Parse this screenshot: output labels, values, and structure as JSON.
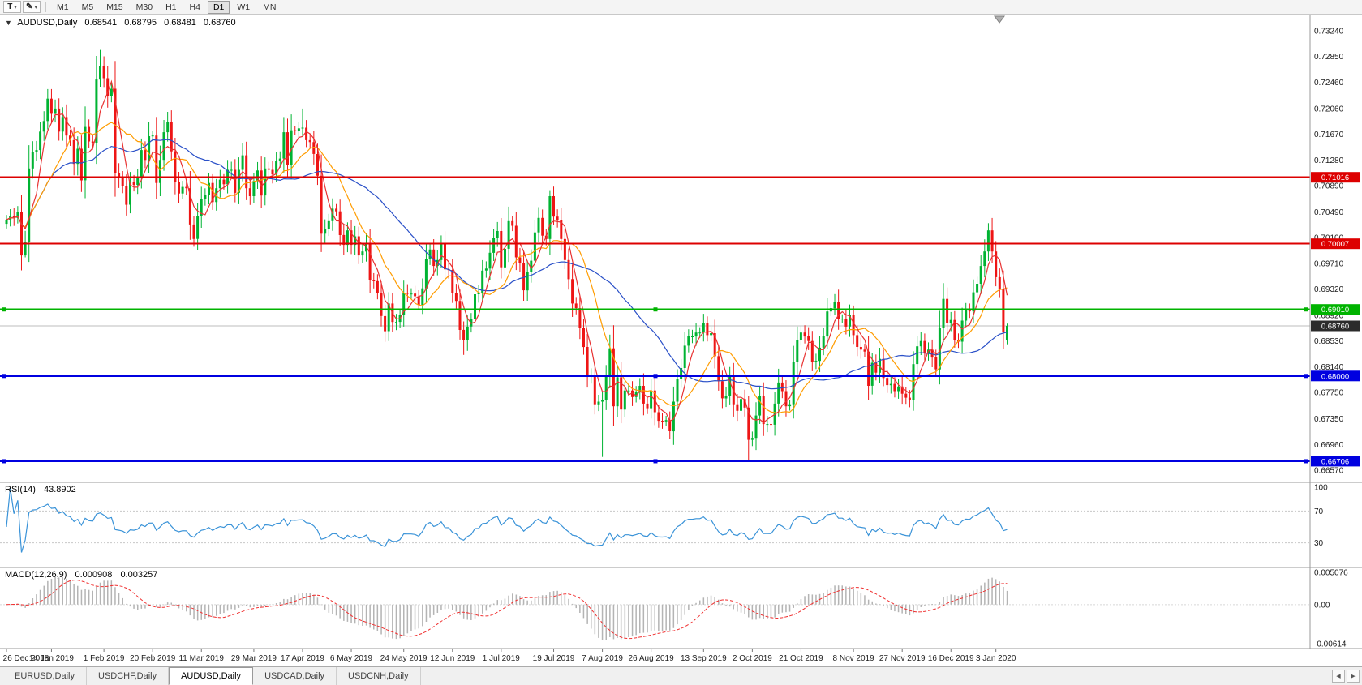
{
  "toolbar": {
    "text_tool_glyph": "T",
    "draw_tool_glyph": "✎",
    "dropdown_glyph": "▾",
    "timeframes": [
      "M1",
      "M5",
      "M15",
      "M30",
      "H1",
      "H4",
      "D1",
      "W1",
      "MN"
    ],
    "active_timeframe": "D1"
  },
  "chart_header": {
    "collapse_glyph": "▼",
    "symbol": "AUDUSD,Daily",
    "open": "0.68541",
    "high": "0.68795",
    "low": "0.68481",
    "close": "0.68760"
  },
  "colors": {
    "up": "#00b332",
    "down": "#ee1515",
    "ma_fast": "#e83232",
    "ma_mid": "#ff9c00",
    "ma_slow": "#2a50c8",
    "rsi": "#3a93d8",
    "macd_hist": "#b4b4b4",
    "macd_signal": "#f03030",
    "axis_text": "#1a1a1a"
  },
  "price_axis": {
    "ticks": [
      0.7324,
      0.7285,
      0.7246,
      0.7206,
      0.7167,
      0.7128,
      0.7089,
      0.7049,
      0.701,
      0.6971,
      0.6932,
      0.6892,
      0.6853,
      0.6814,
      0.6775,
      0.6735,
      0.6696,
      0.6657
    ]
  },
  "date_axis": {
    "ticks": [
      {
        "i": 0,
        "label": "26 Dec 2018"
      },
      {
        "i": 12,
        "label": "14 Jan 2019"
      },
      {
        "i": 26,
        "label": "1 Feb 2019"
      },
      {
        "i": 39,
        "label": "20 Feb 2019"
      },
      {
        "i": 52,
        "label": "11 Mar 2019"
      },
      {
        "i": 66,
        "label": "29 Mar 2019"
      },
      {
        "i": 79,
        "label": "17 Apr 2019"
      },
      {
        "i": 92,
        "label": "6 May 2019"
      },
      {
        "i": 106,
        "label": "24 May 2019"
      },
      {
        "i": 119,
        "label": "12 Jun 2019"
      },
      {
        "i": 132,
        "label": "1 Jul 2019"
      },
      {
        "i": 146,
        "label": "19 Jul 2019"
      },
      {
        "i": 159,
        "label": "7 Aug 2019"
      },
      {
        "i": 172,
        "label": "26 Aug 2019"
      },
      {
        "i": 186,
        "label": "13 Sep 2019"
      },
      {
        "i": 199,
        "label": "2 Oct 2019"
      },
      {
        "i": 212,
        "label": "21 Oct 2019"
      },
      {
        "i": 226,
        "label": "8 Nov 2019"
      },
      {
        "i": 239,
        "label": "27 Nov 2019"
      },
      {
        "i": 252,
        "label": "16 Dec 2019"
      },
      {
        "i": 264,
        "label": "3 Jan 2020"
      }
    ]
  },
  "chart_data": {
    "type": "candlestick",
    "symbol": "AUDUSD",
    "timeframe": "Daily",
    "ohlc_current": {
      "open": 0.68541,
      "high": 0.68795,
      "low": 0.68481,
      "close": 0.6876
    },
    "first_open": 0.7031,
    "closes": [
      0.7037,
      0.7043,
      0.704,
      0.7049,
      0.6983,
      0.7003,
      0.7115,
      0.714,
      0.7143,
      0.7171,
      0.7187,
      0.7221,
      0.7198,
      0.7206,
      0.7171,
      0.7193,
      0.7165,
      0.7158,
      0.7122,
      0.7145,
      0.7097,
      0.7178,
      0.7156,
      0.7153,
      0.725,
      0.7271,
      0.7252,
      0.7225,
      0.7236,
      0.7108,
      0.71,
      0.7088,
      0.706,
      0.7095,
      0.709,
      0.71,
      0.7143,
      0.7128,
      0.7164,
      0.7165,
      0.7093,
      0.7128,
      0.717,
      0.7186,
      0.7141,
      0.7094,
      0.7077,
      0.7087,
      0.7085,
      0.703,
      0.7008,
      0.7043,
      0.7068,
      0.7075,
      0.7093,
      0.7064,
      0.7085,
      0.7098,
      0.7091,
      0.7113,
      0.7113,
      0.7078,
      0.7113,
      0.7135,
      0.7085,
      0.7073,
      0.7096,
      0.7112,
      0.7074,
      0.7115,
      0.7113,
      0.7106,
      0.7127,
      0.713,
      0.717,
      0.712,
      0.7173,
      0.7172,
      0.7176,
      0.7177,
      0.7158,
      0.7155,
      0.7137,
      0.7104,
      0.7016,
      0.7023,
      0.7035,
      0.7054,
      0.705,
      0.7014,
      0.6999,
      0.7021,
      0.6999,
      0.7012,
      0.6983,
      0.6989,
      0.7001,
      0.6945,
      0.6944,
      0.6926,
      0.6891,
      0.6868,
      0.691,
      0.6882,
      0.6882,
      0.6892,
      0.6926,
      0.6925,
      0.6925,
      0.6921,
      0.6908,
      0.6933,
      0.6978,
      0.6992,
      0.6967,
      0.6976,
      0.7,
      0.6962,
      0.6961,
      0.6926,
      0.6914,
      0.687,
      0.6854,
      0.6875,
      0.6886,
      0.6924,
      0.6926,
      0.696,
      0.6963,
      0.6987,
      0.7009,
      0.702,
      0.6965,
      0.6993,
      0.7035,
      0.7028,
      0.698,
      0.6972,
      0.693,
      0.6958,
      0.6975,
      0.7018,
      0.704,
      0.7013,
      0.7008,
      0.7073,
      0.7042,
      0.7036,
      0.7008,
      0.6976,
      0.6947,
      0.691,
      0.6903,
      0.6873,
      0.6844,
      0.68,
      0.68,
      0.6757,
      0.6761,
      0.6763,
      0.68,
      0.6842,
      0.6754,
      0.6798,
      0.6749,
      0.6778,
      0.6778,
      0.6768,
      0.6776,
      0.6785,
      0.6758,
      0.6751,
      0.6778,
      0.6745,
      0.6732,
      0.6731,
      0.6733,
      0.6716,
      0.6761,
      0.6795,
      0.6812,
      0.6846,
      0.686,
      0.686,
      0.6866,
      0.6866,
      0.688,
      0.6862,
      0.6865,
      0.683,
      0.6792,
      0.6766,
      0.677,
      0.6799,
      0.6757,
      0.6747,
      0.6765,
      0.6752,
      0.6703,
      0.6706,
      0.674,
      0.677,
      0.6727,
      0.6727,
      0.6726,
      0.6758,
      0.679,
      0.6777,
      0.6754,
      0.6757,
      0.6821,
      0.6855,
      0.6866,
      0.686,
      0.6853,
      0.6821,
      0.6823,
      0.6843,
      0.686,
      0.6898,
      0.6903,
      0.6913,
      0.6887,
      0.6887,
      0.6875,
      0.6892,
      0.6862,
      0.6844,
      0.684,
      0.6837,
      0.6785,
      0.682,
      0.6805,
      0.6826,
      0.6797,
      0.6786,
      0.6788,
      0.6777,
      0.6784,
      0.6773,
      0.6767,
      0.6764,
      0.6818,
      0.6845,
      0.6853,
      0.6834,
      0.684,
      0.6828,
      0.681,
      0.6873,
      0.6917,
      0.688,
      0.6885,
      0.6855,
      0.6852,
      0.6884,
      0.69,
      0.6898,
      0.6927,
      0.694,
      0.6967,
      0.6989,
      0.7021,
      0.6989,
      0.695,
      0.6932,
      0.6866,
      0.6876
    ],
    "wick_overrides": {
      "5": {
        "low": 0.698
      },
      "25": {
        "high": 0.7295
      },
      "79": {
        "high": 0.7206
      },
      "122": {
        "low": 0.6832
      },
      "145": {
        "high": 0.7082
      },
      "159": {
        "low": 0.6677
      },
      "198": {
        "low": 0.6671
      },
      "262": {
        "high": 0.7032
      },
      "267": {
        "open": 0.68541,
        "high": 0.68795,
        "low": 0.68481
      }
    },
    "moving_averages": [
      {
        "period": 5,
        "color": "#e83232"
      },
      {
        "period": 13,
        "color": "#ff9c00"
      },
      {
        "period": 34,
        "color": "#2a50c8"
      }
    ],
    "hlines": [
      {
        "price": 0.71016,
        "color": "#dd0000",
        "label": "0.71016",
        "selected": false
      },
      {
        "price": 0.70007,
        "color": "#dd0000",
        "label": "0.70007",
        "selected": false
      },
      {
        "price": 0.6901,
        "color": "#00b300",
        "label": "0.69010",
        "selected": true
      },
      {
        "price": 0.68,
        "color": "#0000e0",
        "label": "0.68000",
        "selected": true
      },
      {
        "price": 0.66706,
        "color": "#0000e0",
        "label": "0.66706",
        "selected": true
      }
    ],
    "current_price": {
      "value": 0.6876,
      "label": "0.68760",
      "line_color": "#bdbdbd",
      "badge_color": "#2b2b2b"
    },
    "rsi": {
      "title": "RSI(14)",
      "period": 14,
      "value": "43.8902",
      "axis_labels": [
        100,
        70,
        30
      ],
      "levels": [
        70,
        30
      ],
      "color": "#3a93d8"
    },
    "macd": {
      "title": "MACD(12,26,9)",
      "fast": 12,
      "slow": 26,
      "signal_period": 9,
      "value_main": "0.000908",
      "value_signal": "0.003257",
      "scale_max": 0.005076,
      "scale_min": -0.00614,
      "scale_max_label": "0.005076",
      "zero_label": "0.00",
      "scale_min_label": "-0.00614"
    }
  },
  "tabs": {
    "items": [
      "EURUSD,Daily",
      "USDCHF,Daily",
      "AUDUSD,Daily",
      "USDCAD,Daily",
      "USDCNH,Daily"
    ],
    "active": "AUDUSD,Daily",
    "scroll_left_glyph": "◀",
    "scroll_right_glyph": "▶"
  }
}
